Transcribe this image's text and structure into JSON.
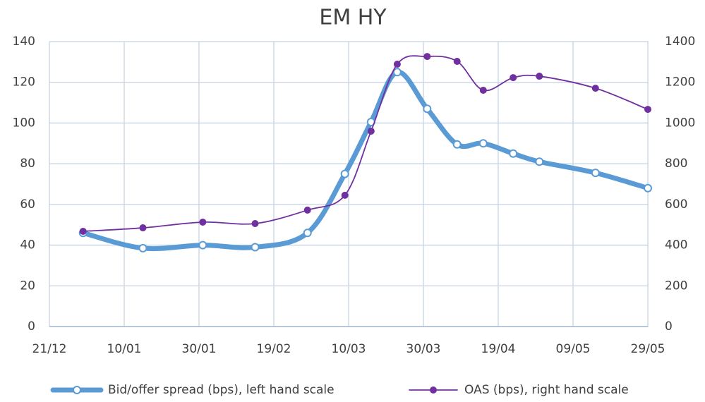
{
  "chart_data": {
    "type": "line",
    "title": "EM HY",
    "x": [
      "30/12",
      "15/01",
      "31/01",
      "14/02",
      "28/02",
      "09/03",
      "16/03",
      "23/03",
      "31/03",
      "08/04",
      "15/04",
      "23/04",
      "30/04",
      "15/05",
      "29/05"
    ],
    "xlim": [
      "21/12",
      "29/05"
    ],
    "xticks": [
      "21/12",
      "10/01",
      "30/01",
      "19/02",
      "10/03",
      "30/03",
      "19/04",
      "09/05",
      "29/05"
    ],
    "ylim": [
      0,
      140
    ],
    "yticks": [
      0,
      20,
      40,
      60,
      80,
      100,
      120,
      140
    ],
    "y2lim": [
      0,
      1400
    ],
    "y2ticks": [
      0,
      200,
      400,
      600,
      800,
      1000,
      1200,
      1400
    ],
    "grid": true,
    "legend": "bottom",
    "series": [
      {
        "name": "Bid/offer spread (bps), left hand scale",
        "color": "#5b9bd5",
        "values": [
          46,
          38.5,
          40,
          39,
          46,
          75,
          100.5,
          125,
          107,
          89.5,
          90,
          85,
          81,
          75.5,
          68
        ]
      },
      {
        "name": "OAS (bps), right hand scale",
        "color": "#7030a0",
        "axis": "y2",
        "values": [
          468,
          485,
          513,
          506,
          572,
          645,
          960,
          1289,
          1327,
          1303,
          1161,
          1223,
          1230,
          1171,
          1067
        ]
      }
    ]
  }
}
